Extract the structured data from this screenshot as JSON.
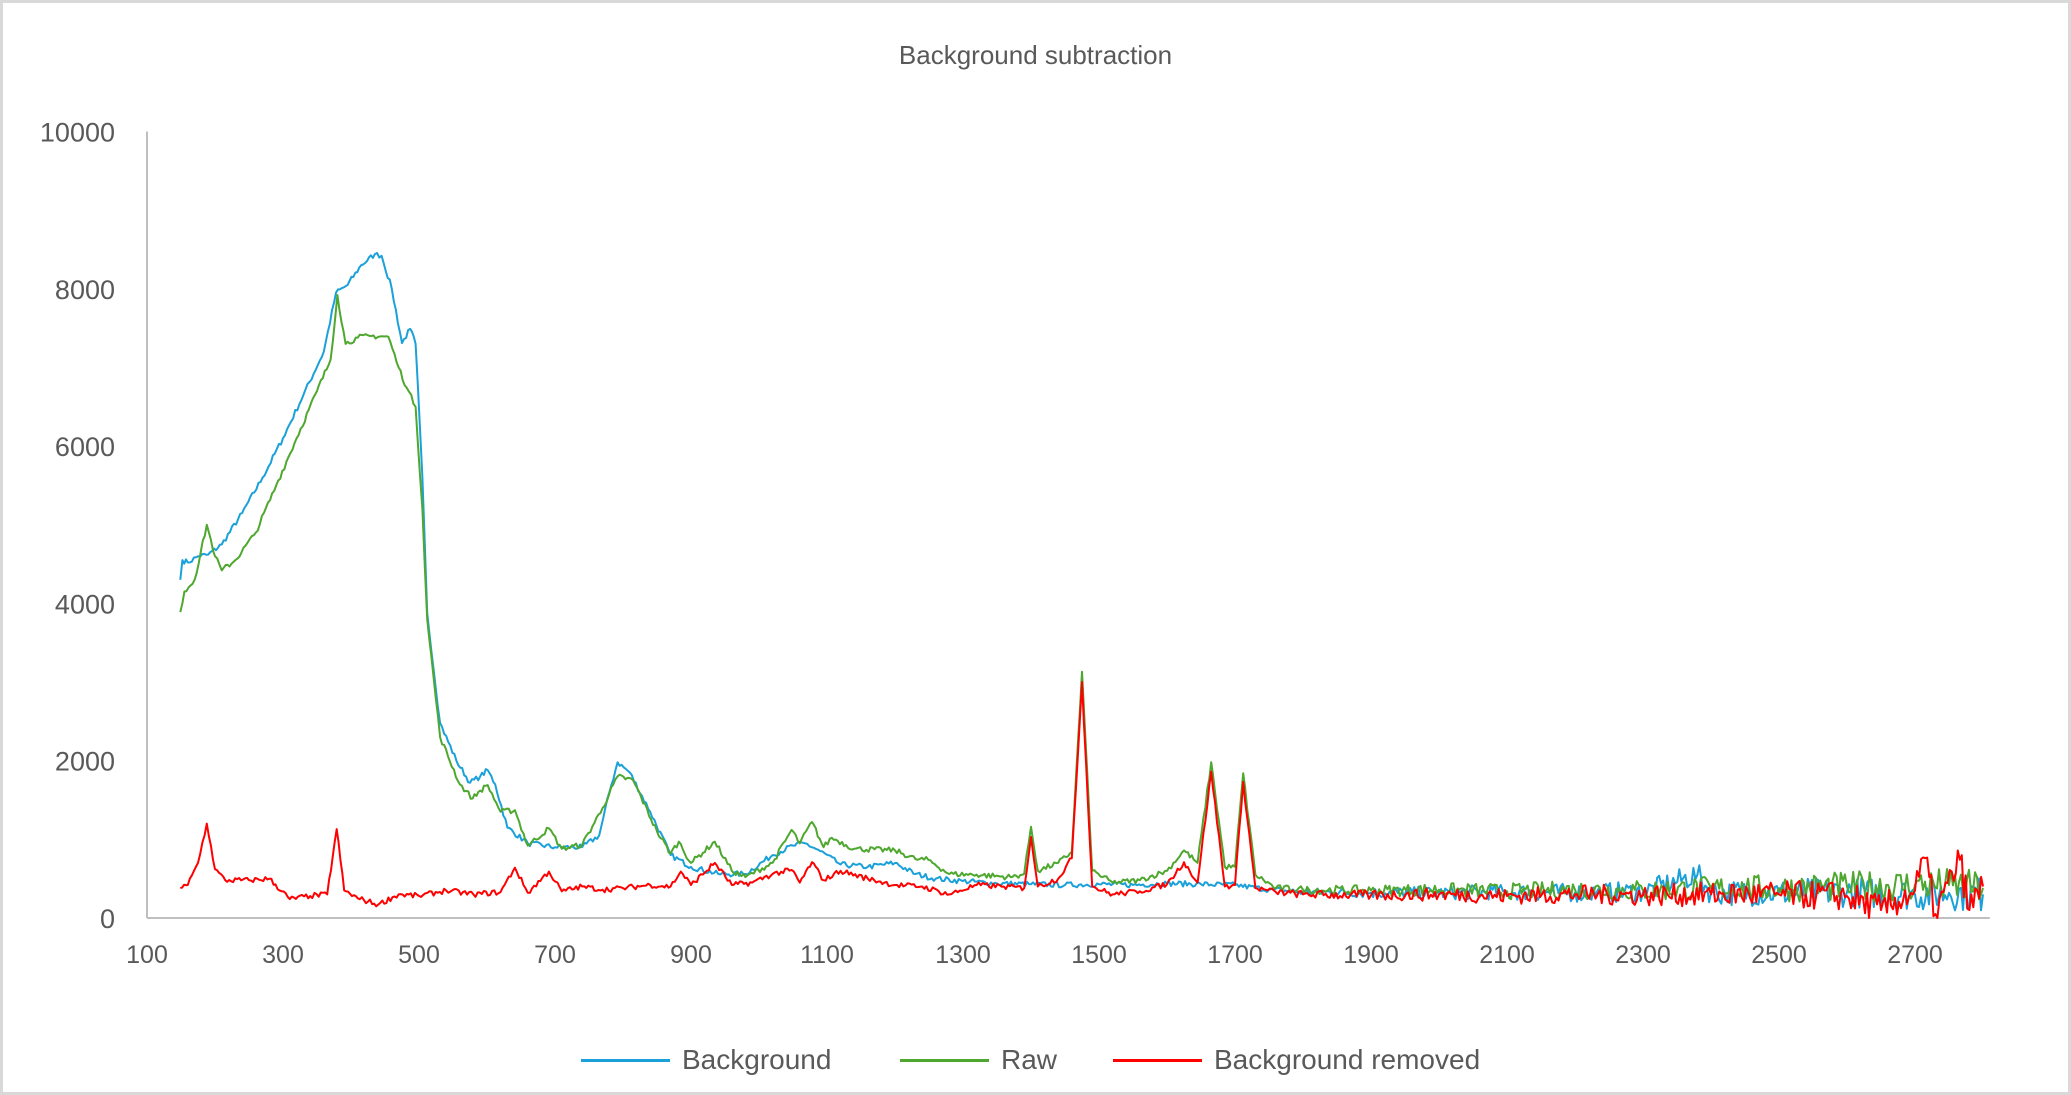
{
  "chart_data": {
    "type": "line",
    "title": "Background subtraction",
    "xlabel": "",
    "ylabel": "",
    "xlim": [
      100,
      2810
    ],
    "ylim": [
      0,
      10000
    ],
    "x_ticks": [
      100,
      300,
      500,
      700,
      900,
      1100,
      1300,
      1500,
      1700,
      1900,
      2100,
      2300,
      2500,
      2700
    ],
    "y_ticks": [
      0,
      2000,
      4000,
      6000,
      8000,
      10000
    ],
    "grid": false,
    "legend_position": "bottom",
    "series": [
      {
        "name": "Background",
        "color": "#1ba1d9",
        "x": [
          149,
          152,
          160,
          175,
          190,
          210,
          240,
          270,
          300,
          330,
          360,
          378,
          395,
          415,
          435,
          445,
          460,
          475,
          487,
          495,
          505,
          512,
          531,
          555,
          575,
          590,
          601,
          612,
          630,
          660,
          700,
          740,
          765,
          780,
          792,
          810,
          840,
          870,
          900,
          940,
          980,
          1020,
          1050,
          1068,
          1090,
          1120,
          1160,
          1200,
          1230,
          1260,
          1300,
          1350,
          1400,
          1450,
          1500,
          1550,
          1600,
          1650,
          1700,
          1750,
          1800,
          1900,
          2000,
          2100,
          2200,
          2300,
          2380,
          2400,
          2500,
          2600,
          2700,
          2750,
          2800
        ],
        "y": [
          4300,
          4550,
          4520,
          4600,
          4620,
          4750,
          5150,
          5600,
          6100,
          6650,
          7200,
          7950,
          8050,
          8300,
          8440,
          8420,
          8000,
          7310,
          7490,
          7300,
          5600,
          3880,
          2480,
          2000,
          1720,
          1800,
          1880,
          1700,
          1150,
          950,
          900,
          900,
          1050,
          1600,
          1980,
          1850,
          1350,
          800,
          650,
          560,
          560,
          800,
          920,
          950,
          850,
          680,
          650,
          700,
          560,
          500,
          470,
          440,
          430,
          420,
          430,
          420,
          440,
          430,
          420,
          360,
          330,
          320,
          320,
          330,
          320,
          330,
          550,
          320,
          320,
          330,
          300,
          320,
          300
        ]
      },
      {
        "name": "Raw",
        "color": "#4ea72e",
        "x": [
          149,
          155,
          170,
          188,
          200,
          210,
          230,
          260,
          290,
          320,
          350,
          370,
          380,
          392,
          410,
          430,
          455,
          470,
          482,
          495,
          505,
          512,
          531,
          560,
          579,
          590,
          601,
          620,
          641,
          660,
          691,
          710,
          740,
          770,
          792,
          815,
          850,
          870,
          882,
          900,
          935,
          960,
          980,
          1020,
          1048,
          1060,
          1078,
          1095,
          1107,
          1140,
          1200,
          1230,
          1249,
          1280,
          1320,
          1370,
          1390,
          1400,
          1410,
          1440,
          1460,
          1475,
          1490,
          1520,
          1560,
          1600,
          1625,
          1645,
          1665,
          1685,
          1700,
          1712,
          1730,
          1760,
          1800,
          1900,
          2000,
          2100,
          2200,
          2300,
          2400,
          2500,
          2600,
          2700,
          2750,
          2800
        ],
        "y": [
          3890,
          4150,
          4300,
          5000,
          4600,
          4420,
          4550,
          4900,
          5500,
          6100,
          6700,
          7100,
          7920,
          7300,
          7380,
          7400,
          7390,
          7000,
          6740,
          6500,
          5200,
          3800,
          2300,
          1700,
          1520,
          1620,
          1690,
          1350,
          1370,
          920,
          1140,
          880,
          930,
          1400,
          1800,
          1750,
          1100,
          820,
          970,
          700,
          970,
          600,
          520,
          700,
          1120,
          950,
          1220,
          900,
          1020,
          880,
          860,
          750,
          740,
          560,
          550,
          520,
          560,
          1160,
          600,
          700,
          840,
          3130,
          600,
          450,
          480,
          600,
          860,
          700,
          1980,
          650,
          650,
          1840,
          550,
          380,
          360,
          350,
          360,
          340,
          360,
          350,
          380,
          380,
          400,
          420,
          420,
          380
        ]
      },
      {
        "name": "Background removed",
        "color": "#ff0000",
        "x": [
          149,
          160,
          175,
          188,
          200,
          215,
          250,
          280,
          310,
          340,
          365,
          379,
          390,
          410,
          440,
          470,
          500,
          540,
          580,
          620,
          641,
          660,
          691,
          710,
          740,
          770,
          800,
          840,
          870,
          885,
          900,
          935,
          960,
          990,
          1020,
          1048,
          1060,
          1078,
          1095,
          1120,
          1160,
          1200,
          1240,
          1280,
          1320,
          1360,
          1390,
          1400,
          1410,
          1440,
          1460,
          1475,
          1490,
          1520,
          1560,
          1600,
          1625,
          1645,
          1665,
          1685,
          1700,
          1712,
          1730,
          1760,
          1800,
          1900,
          2000,
          2100,
          2200,
          2300,
          2400,
          2500,
          2600,
          2650,
          2700,
          2715,
          2730,
          2766,
          2780,
          2800
        ],
        "y": [
          380,
          420,
          700,
          1200,
          620,
          480,
          480,
          500,
          240,
          280,
          300,
          1130,
          350,
          250,
          170,
          300,
          280,
          350,
          300,
          330,
          640,
          320,
          590,
          340,
          400,
          360,
          380,
          420,
          400,
          590,
          420,
          700,
          420,
          450,
          560,
          610,
          450,
          710,
          480,
          600,
          500,
          420,
          400,
          300,
          420,
          400,
          380,
          1030,
          400,
          500,
          760,
          3000,
          400,
          300,
          340,
          430,
          710,
          450,
          1860,
          400,
          420,
          1730,
          380,
          330,
          300,
          290,
          300,
          280,
          300,
          290,
          300,
          300,
          280,
          100,
          350,
          760,
          50,
          740,
          100,
          400
        ]
      }
    ]
  },
  "legend": {
    "items": [
      {
        "label": "Background",
        "color": "#1ba1d9"
      },
      {
        "label": "Raw",
        "color": "#4ea72e"
      },
      {
        "label": "Background removed",
        "color": "#ff0000"
      }
    ]
  },
  "colors": {
    "axis": "#bfbfbf",
    "text": "#595959",
    "frame": "#d9d9d9"
  }
}
